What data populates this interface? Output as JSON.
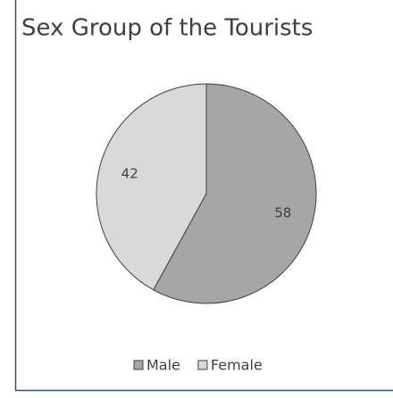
{
  "chart_data": {
    "type": "pie",
    "title": "Sex Group of the Tourists",
    "categories": [
      "Male",
      "Female"
    ],
    "values": [
      58,
      42
    ],
    "colors": [
      "#a6a6a6",
      "#d9d9d9"
    ],
    "legend": "bottom"
  }
}
